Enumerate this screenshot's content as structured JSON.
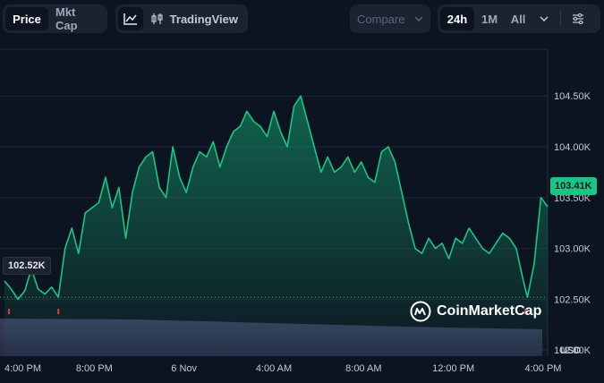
{
  "toolbar": {
    "metric_tabs": [
      {
        "label": "Price",
        "active": true
      },
      {
        "label": "Mkt Cap",
        "active": false
      }
    ],
    "chart_type_icon": "line-chart-icon",
    "tradingview_label": "TradingView",
    "compare_label": "Compare",
    "range_tabs": [
      {
        "label": "24h",
        "active": true
      },
      {
        "label": "1M",
        "active": false
      },
      {
        "label": "All",
        "active": false
      }
    ],
    "settings_icon": "sliders-icon"
  },
  "price_badge": "103.41K",
  "open_badge": "102.52K",
  "watermark": "CoinMarketCap",
  "currency": "USD",
  "colors": {
    "background": "#0d1421",
    "line": "#16c784",
    "current_badge": "#16c784",
    "low_marker": "#ea3943",
    "volume": "#3a4163"
  },
  "chart_data": {
    "type": "line",
    "title": "",
    "xlabel": "",
    "ylabel": "USD",
    "x_tick_labels": [
      "4:00 PM",
      "8:00 PM",
      "6 Nov",
      "4:00 AM",
      "8:00 AM",
      "12:00 PM",
      "4:00 PM"
    ],
    "y_tick_labels": [
      "104.50K",
      "104.00K",
      "103.50K",
      "103.00K",
      "102.50K",
      "102.00K"
    ],
    "y_ticks": [
      104.5,
      104.0,
      103.5,
      103.0,
      102.5,
      102.0
    ],
    "ylim": [
      101.94,
      104.96
    ],
    "x_range_hours": [
      -0.2,
      24.2
    ],
    "grid": true,
    "reference_line": 102.52,
    "current_value": 103.41,
    "low_markers_x_hours": [
      0.2,
      2.4,
      23.2
    ],
    "series": [
      {
        "values": [
          [
            0.0,
            102.68
          ],
          [
            0.3,
            102.6
          ],
          [
            0.6,
            102.5
          ],
          [
            0.9,
            102.58
          ],
          [
            1.2,
            102.8
          ],
          [
            1.5,
            102.6
          ],
          [
            1.8,
            102.55
          ],
          [
            2.1,
            102.62
          ],
          [
            2.4,
            102.52
          ],
          [
            2.7,
            103.0
          ],
          [
            3.0,
            103.2
          ],
          [
            3.3,
            102.95
          ],
          [
            3.6,
            103.35
          ],
          [
            3.9,
            103.4
          ],
          [
            4.2,
            103.45
          ],
          [
            4.5,
            103.7
          ],
          [
            4.8,
            103.4
          ],
          [
            5.1,
            103.6
          ],
          [
            5.4,
            103.1
          ],
          [
            5.7,
            103.55
          ],
          [
            6.0,
            103.8
          ],
          [
            6.3,
            103.9
          ],
          [
            6.6,
            103.95
          ],
          [
            6.9,
            103.6
          ],
          [
            7.2,
            103.5
          ],
          [
            7.5,
            104.0
          ],
          [
            7.8,
            103.7
          ],
          [
            8.1,
            103.55
          ],
          [
            8.4,
            103.8
          ],
          [
            8.7,
            103.95
          ],
          [
            9.0,
            103.9
          ],
          [
            9.3,
            104.05
          ],
          [
            9.6,
            103.8
          ],
          [
            9.9,
            104.0
          ],
          [
            10.2,
            104.15
          ],
          [
            10.5,
            104.2
          ],
          [
            10.8,
            104.35
          ],
          [
            11.1,
            104.25
          ],
          [
            11.4,
            104.2
          ],
          [
            11.7,
            104.1
          ],
          [
            12.0,
            104.35
          ],
          [
            12.3,
            104.15
          ],
          [
            12.6,
            104.0
          ],
          [
            12.9,
            104.4
          ],
          [
            13.2,
            104.5
          ],
          [
            13.5,
            104.25
          ],
          [
            13.8,
            104.0
          ],
          [
            14.1,
            103.75
          ],
          [
            14.4,
            103.9
          ],
          [
            14.7,
            103.75
          ],
          [
            15.0,
            103.8
          ],
          [
            15.3,
            103.9
          ],
          [
            15.6,
            103.75
          ],
          [
            15.9,
            103.85
          ],
          [
            16.2,
            103.7
          ],
          [
            16.5,
            103.65
          ],
          [
            16.8,
            103.95
          ],
          [
            17.1,
            104.0
          ],
          [
            17.4,
            103.85
          ],
          [
            17.7,
            103.55
          ]
        ]
      }
    ],
    "volume_level": 0.82
  }
}
